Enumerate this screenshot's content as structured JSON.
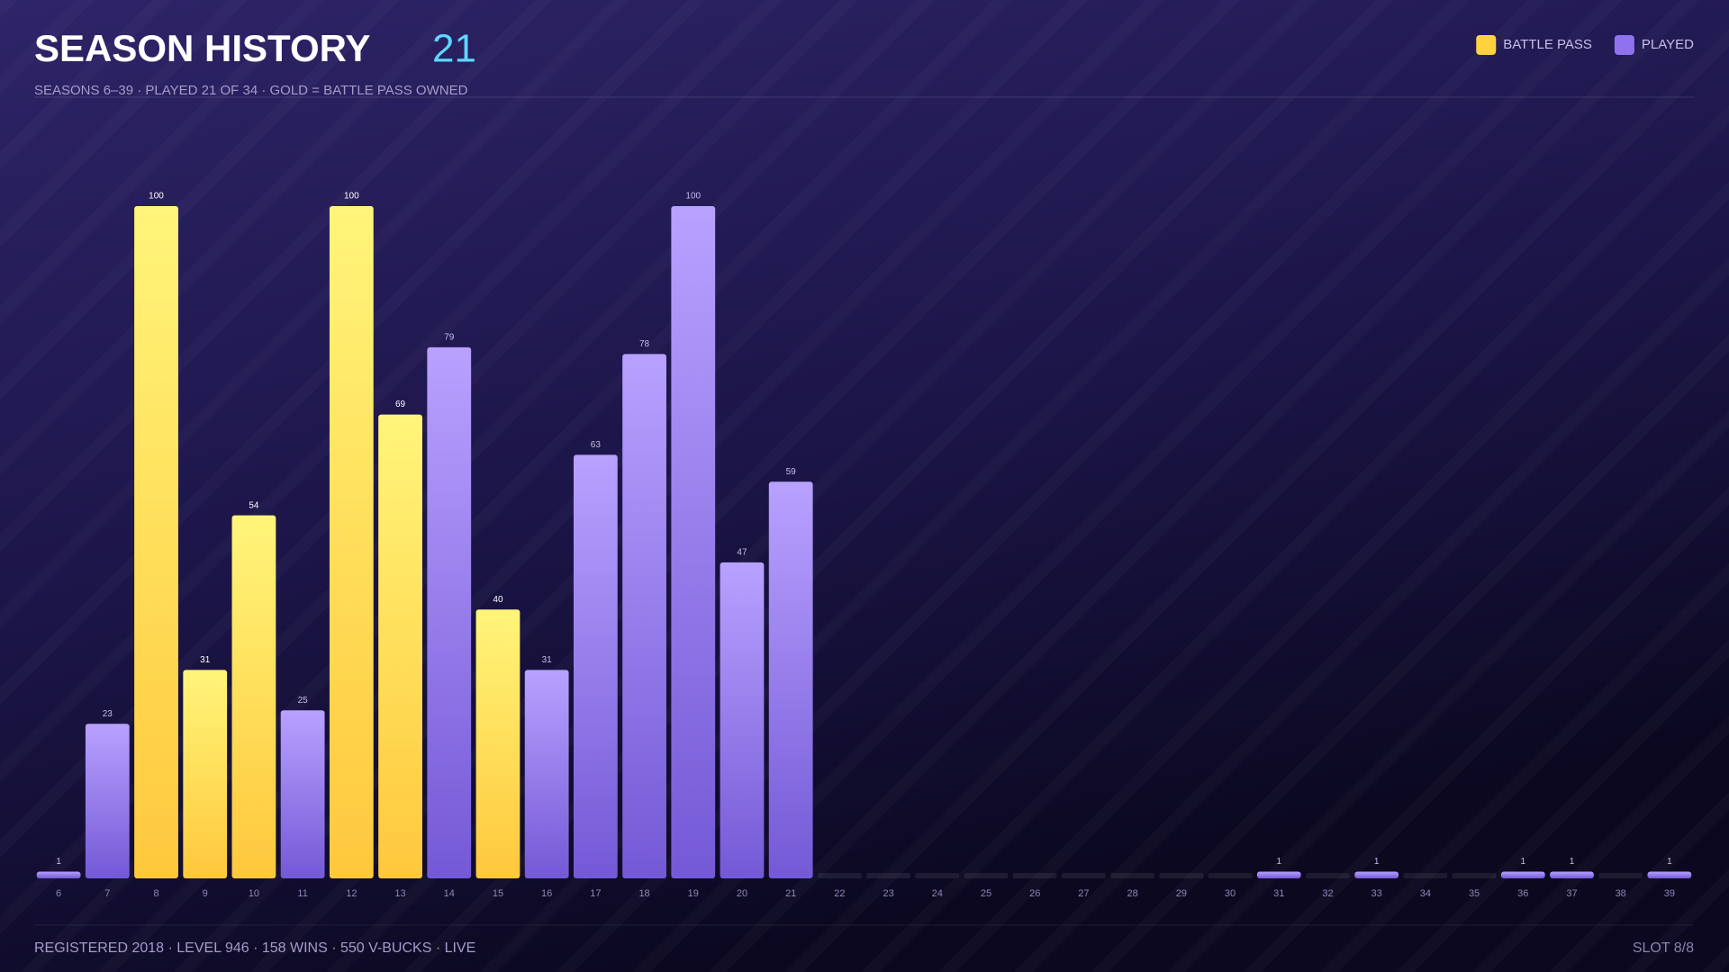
{
  "header": {
    "title": "SEASON HISTORY",
    "count": "21",
    "subtitle": "SEASONS 6–39 · PLAYED 21 OF 34 · GOLD = BATTLE PASS OWNED"
  },
  "chart_data": {
    "type": "bar",
    "categories": [
      "6",
      "7",
      "8",
      "9",
      "10",
      "11",
      "12",
      "13",
      "14",
      "15",
      "16",
      "17",
      "18",
      "19",
      "20",
      "21",
      "22",
      "23",
      "24",
      "25",
      "26",
      "27",
      "28",
      "29",
      "30",
      "31",
      "32",
      "33",
      "34",
      "35",
      "36",
      "37",
      "38",
      "39"
    ],
    "series": [
      {
        "name": "BATTLE PASS",
        "color": "#ffd23f",
        "values": [
          null,
          null,
          100,
          31,
          54,
          null,
          100,
          69,
          null,
          40,
          null,
          null,
          null,
          null,
          null,
          null,
          null,
          null,
          null,
          null,
          null,
          null,
          null,
          null,
          null,
          null,
          null,
          null,
          null,
          null,
          null,
          null,
          null,
          null
        ]
      },
      {
        "name": "PLAYED",
        "color": "#8f72f0",
        "values": [
          1,
          23,
          null,
          null,
          null,
          25,
          null,
          null,
          79,
          null,
          31,
          63,
          78,
          100,
          47,
          59,
          null,
          null,
          null,
          null,
          null,
          null,
          null,
          null,
          null,
          1,
          null,
          1,
          null,
          null,
          1,
          1,
          null,
          1
        ]
      }
    ],
    "ylim": [
      0,
      100
    ],
    "legend": "top-right",
    "grid": false
  },
  "footer": {
    "info": "REGISTERED 2018 · LEVEL 946 · 158 WINS · 550 V-BUCKS · LIVE",
    "slot": "SLOT 8/8"
  }
}
